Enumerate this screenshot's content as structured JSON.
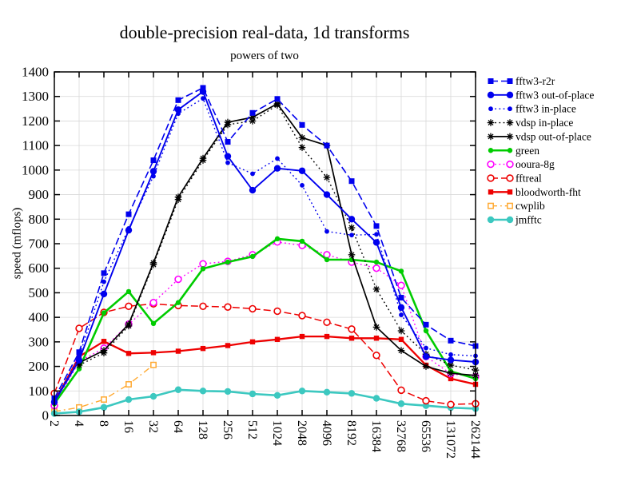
{
  "title": "double-precision real-data, 1d transforms",
  "subtitle": "powers of two",
  "ylabel": "speed (mflops)",
  "chart_data": {
    "type": "line",
    "title": "double-precision real-data, 1d transforms",
    "subtitle": "powers of two",
    "xlabel": "",
    "ylabel": "speed (mflops)",
    "ylim": [
      0,
      1400
    ],
    "ytick_step": 100,
    "grid": true,
    "legend_position": "right-outside",
    "x_labels": [
      "2",
      "4",
      "8",
      "16",
      "32",
      "64",
      "128",
      "256",
      "512",
      "1024",
      "2048",
      "4096",
      "8192",
      "16384",
      "32768",
      "65536",
      "131072",
      "262144"
    ],
    "series": [
      {
        "name": "fftw3-r2r",
        "color": "#0000ee",
        "line": "dashed",
        "marker": "square-filled",
        "values": [
          70,
          258,
          580,
          820,
          1040,
          1285,
          1335,
          1115,
          1233,
          1290,
          1184,
          1100,
          955,
          772,
          480,
          370,
          305,
          283
        ]
      },
      {
        "name": "fftw3 out-of-place",
        "color": "#0000ee",
        "line": "solid",
        "marker": "circle-filled-lg",
        "values": [
          55,
          225,
          495,
          755,
          995,
          1246,
          1320,
          1056,
          918,
          1007,
          997,
          900,
          800,
          705,
          440,
          240,
          226,
          218
        ]
      },
      {
        "name": "fftw3 in-place",
        "color": "#0000ee",
        "line": "dotted",
        "marker": "circle-filled-sm",
        "values": [
          60,
          240,
          545,
          762,
          975,
          1230,
          1292,
          1030,
          985,
          1047,
          938,
          750,
          735,
          738,
          410,
          275,
          248,
          243
        ]
      },
      {
        "name": "vdsp in-place",
        "color": "#000000",
        "line": "dotted",
        "marker": "asterisk",
        "values": [
          null,
          205,
          255,
          365,
          615,
          880,
          1040,
          1185,
          1200,
          1265,
          1092,
          970,
          765,
          515,
          345,
          250,
          205,
          185
        ]
      },
      {
        "name": "vdsp out-of-place",
        "color": "#000000",
        "line": "solid",
        "marker": "asterisk",
        "values": [
          null,
          215,
          265,
          372,
          622,
          890,
          1048,
          1195,
          1215,
          1270,
          1132,
          1100,
          655,
          360,
          265,
          200,
          172,
          163
        ]
      },
      {
        "name": "green",
        "color": "#00cc00",
        "line": "solid",
        "marker": "circle-filled-md",
        "values": [
          48,
          190,
          418,
          505,
          375,
          460,
          598,
          625,
          648,
          720,
          710,
          635,
          635,
          625,
          588,
          345,
          180,
          150
        ]
      },
      {
        "name": "ooura-8g",
        "color": "#ff00ff",
        "line": "dotted",
        "marker": "circle-open",
        "values": [
          40,
          220,
          274,
          372,
          460,
          555,
          618,
          628,
          655,
          707,
          693,
          655,
          625,
          600,
          530,
          240,
          170,
          158
        ]
      },
      {
        "name": "fftreal",
        "color": "#ee0000",
        "line": "dashed",
        "marker": "circle-open",
        "values": [
          90,
          355,
          420,
          445,
          455,
          448,
          445,
          442,
          435,
          425,
          407,
          380,
          352,
          245,
          103,
          60,
          45,
          48
        ]
      },
      {
        "name": "bloodworth-fht",
        "color": "#ee0000",
        "line": "solid",
        "marker": "square-filled-sm",
        "values": [
          55,
          240,
          302,
          253,
          256,
          262,
          273,
          285,
          300,
          310,
          322,
          322,
          315,
          315,
          310,
          205,
          150,
          127
        ]
      },
      {
        "name": "cwplib",
        "color": "#ffaa33",
        "line": "dashdot",
        "marker": "square-open",
        "values": [
          16,
          33,
          65,
          127,
          206,
          null,
          null,
          null,
          null,
          null,
          null,
          null,
          null,
          null,
          null,
          null,
          null,
          null
        ]
      },
      {
        "name": "jmfftc",
        "color": "#3cc8c0",
        "line": "solid",
        "marker": "circle-filled-lg",
        "values": [
          8,
          15,
          33,
          65,
          78,
          105,
          100,
          98,
          88,
          82,
          100,
          95,
          90,
          70,
          48,
          40,
          32,
          28
        ]
      }
    ]
  }
}
